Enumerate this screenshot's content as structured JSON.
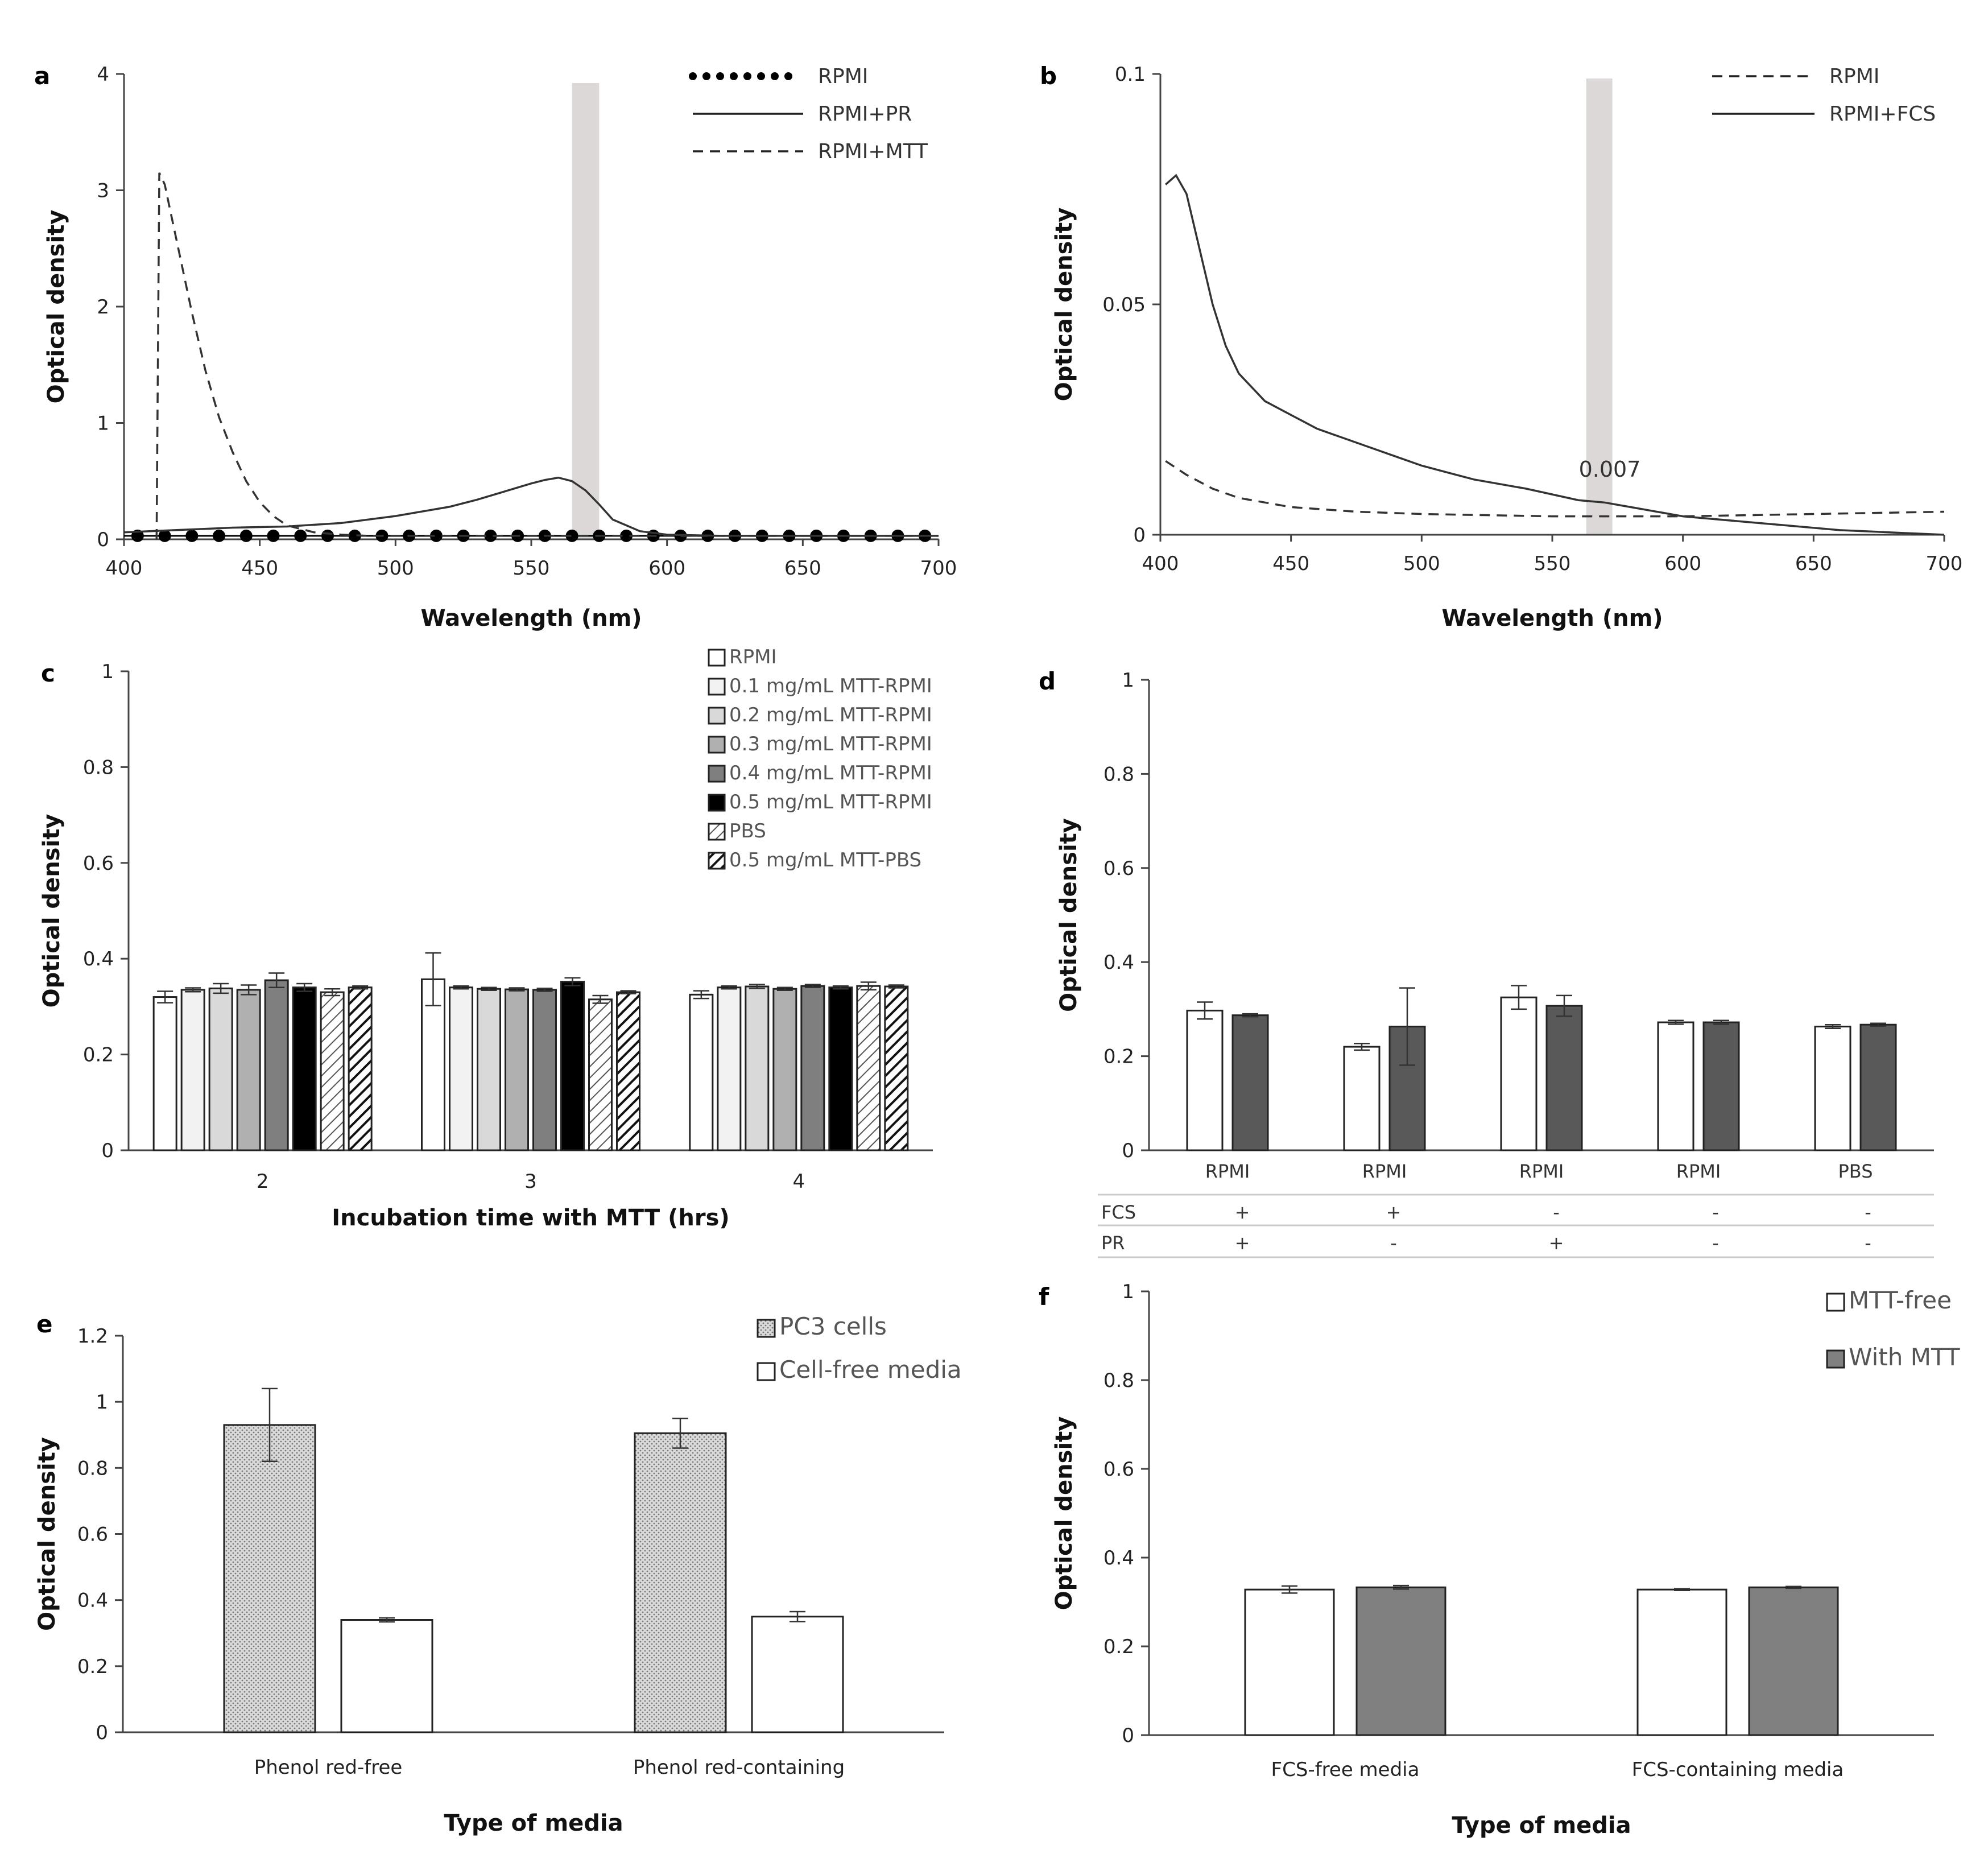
{
  "figure": {
    "panel_labels": [
      "a",
      "b",
      "c",
      "d",
      "e",
      "f"
    ],
    "table_d": {
      "row_labels": [
        "FCS",
        "PR"
      ],
      "rows": [
        [
          "+",
          "+",
          "-",
          "-",
          "-"
        ],
        [
          "+",
          "-",
          "+",
          "-",
          "-"
        ]
      ]
    }
  },
  "chart_data": [
    {
      "id": "a",
      "type": "line",
      "xlabel": "Wavelength (nm)",
      "ylabel": "Optical density",
      "xlim": [
        400,
        700
      ],
      "ylim": [
        0,
        4
      ],
      "xticks": [
        "400",
        "450",
        "500",
        "550",
        "600",
        "650",
        "700"
      ],
      "yticks": [
        "0",
        "1",
        "2",
        "3",
        "4"
      ],
      "highlight_band": [
        565,
        575
      ],
      "legend": [
        "RPMI",
        "RPMI+PR",
        "RPMI+MTT"
      ],
      "series": [
        {
          "name": "RPMI",
          "style": "dotted",
          "x": [
            400,
            410,
            420,
            430,
            440,
            450,
            460,
            470,
            480,
            490,
            500,
            510,
            520,
            530,
            540,
            550,
            560,
            570,
            580,
            590,
            600,
            610,
            620,
            630,
            640,
            650,
            660,
            670,
            680,
            690,
            700
          ],
          "y": [
            0.03,
            0.03,
            0.03,
            0.03,
            0.03,
            0.03,
            0.03,
            0.03,
            0.03,
            0.03,
            0.03,
            0.03,
            0.03,
            0.03,
            0.03,
            0.03,
            0.03,
            0.03,
            0.03,
            0.03,
            0.03,
            0.03,
            0.03,
            0.03,
            0.03,
            0.03,
            0.03,
            0.03,
            0.03,
            0.03,
            0.03
          ]
        },
        {
          "name": "RPMI+PR",
          "style": "solid",
          "x": [
            400,
            420,
            440,
            460,
            480,
            500,
            520,
            530,
            540,
            550,
            555,
            560,
            565,
            570,
            575,
            580,
            590,
            600,
            620,
            650,
            700
          ],
          "y": [
            0.06,
            0.08,
            0.1,
            0.11,
            0.14,
            0.2,
            0.28,
            0.34,
            0.41,
            0.48,
            0.51,
            0.53,
            0.5,
            0.42,
            0.3,
            0.17,
            0.07,
            0.04,
            0.03,
            0.03,
            0.03
          ]
        },
        {
          "name": "RPMI+MTT",
          "style": "dashed",
          "x": [
            412,
            413,
            415,
            420,
            425,
            430,
            435,
            440,
            445,
            450,
            455,
            460,
            470,
            480,
            490,
            500,
            550,
            600,
            700
          ],
          "y": [
            0.0,
            3.15,
            3.05,
            2.5,
            1.95,
            1.45,
            1.05,
            0.75,
            0.5,
            0.32,
            0.2,
            0.12,
            0.06,
            0.04,
            0.03,
            0.03,
            0.03,
            0.03,
            0.03
          ]
        }
      ]
    },
    {
      "id": "b",
      "type": "line",
      "xlabel": "Wavelength (nm)",
      "ylabel": "Optical density",
      "xlim": [
        400,
        700
      ],
      "ylim": [
        0,
        0.1
      ],
      "xticks": [
        "400",
        "450",
        "500",
        "550",
        "600",
        "650",
        "700"
      ],
      "yticks": [
        "0",
        "0.05",
        "0.1"
      ],
      "highlight_band": [
        563,
        573
      ],
      "annotation": "0.007",
      "legend": [
        "RPMI",
        "RPMI+FCS"
      ],
      "series": [
        {
          "name": "RPMI",
          "style": "dashed",
          "x": [
            402,
            410,
            420,
            430,
            450,
            475,
            500,
            550,
            600,
            650,
            700
          ],
          "y": [
            0.016,
            0.013,
            0.01,
            0.008,
            0.006,
            0.005,
            0.0045,
            0.004,
            0.004,
            0.0045,
            0.005
          ]
        },
        {
          "name": "RPMI+FCS",
          "style": "solid",
          "x": [
            402,
            406,
            410,
            415,
            420,
            425,
            430,
            440,
            450,
            460,
            470,
            480,
            490,
            500,
            520,
            540,
            560,
            570,
            580,
            600,
            620,
            640,
            660,
            680,
            700
          ],
          "y": [
            0.076,
            0.078,
            0.074,
            0.062,
            0.05,
            0.041,
            0.035,
            0.029,
            0.026,
            0.023,
            0.021,
            0.019,
            0.017,
            0.015,
            0.012,
            0.01,
            0.0075,
            0.007,
            0.006,
            0.004,
            0.003,
            0.002,
            0.001,
            0.0005,
            0.0
          ]
        }
      ]
    },
    {
      "id": "c",
      "type": "bar",
      "xlabel": "Incubation time with MTT (hrs)",
      "ylabel": "Optical density",
      "ylim": [
        0,
        1
      ],
      "yticks": [
        "0",
        "0.2",
        "0.4",
        "0.6",
        "0.8",
        "1"
      ],
      "categories": [
        "2",
        "3",
        "4"
      ],
      "series": [
        {
          "name": "RPMI",
          "fill": "#ffffff",
          "values": [
            0.32,
            0.357,
            0.325
          ],
          "errors": [
            0.012,
            0.055,
            0.008
          ]
        },
        {
          "name": "0.1 mg/mL MTT-RPMI",
          "fill": "#f2f2f2",
          "values": [
            0.335,
            0.34,
            0.34
          ],
          "errors": [
            0.004,
            0.003,
            0.003
          ]
        },
        {
          "name": "0.2 mg/mL MTT-RPMI",
          "fill": "#d9d9d9",
          "values": [
            0.338,
            0.337,
            0.342
          ],
          "errors": [
            0.01,
            0.003,
            0.004
          ]
        },
        {
          "name": "0.3 mg/mL MTT-RPMI",
          "fill": "#b0b0b0",
          "values": [
            0.335,
            0.336,
            0.337
          ],
          "errors": [
            0.01,
            0.003,
            0.003
          ]
        },
        {
          "name": "0.4 mg/mL MTT-RPMI",
          "fill": "#7f7f7f",
          "values": [
            0.355,
            0.335,
            0.343
          ],
          "errors": [
            0.015,
            0.003,
            0.003
          ]
        },
        {
          "name": "0.5 mg/mL MTT-RPMI",
          "fill": "#000000",
          "values": [
            0.34,
            0.352,
            0.34
          ],
          "errors": [
            0.008,
            0.008,
            0.003
          ]
        },
        {
          "name": "PBS",
          "fill": "hatch-light",
          "values": [
            0.33,
            0.315,
            0.343
          ],
          "errors": [
            0.007,
            0.008,
            0.008
          ]
        },
        {
          "name": "0.5 mg/mL MTT-PBS",
          "fill": "hatch-dark",
          "values": [
            0.34,
            0.33,
            0.342
          ],
          "errors": [
            0.003,
            0.003,
            0.003
          ]
        }
      ]
    },
    {
      "id": "d",
      "type": "bar",
      "xlabel": "",
      "ylabel": "Optical density",
      "ylim": [
        0,
        1
      ],
      "yticks": [
        "0",
        "0.2",
        "0.4",
        "0.6",
        "0.8",
        "1"
      ],
      "categories": [
        "RPMI",
        "RPMI",
        "RPMI",
        "RPMI",
        "PBS"
      ],
      "series": [
        {
          "name": "MTT-free",
          "fill": "#ffffff",
          "values": [
            0.297,
            0.22,
            0.325,
            0.272,
            0.263
          ],
          "errors": [
            0.018,
            0.007,
            0.025,
            0.004,
            0.004
          ]
        },
        {
          "name": "With MTT",
          "fill": "#595959",
          "values": [
            0.287,
            0.263,
            0.307,
            0.272,
            0.267
          ],
          "errors": [
            0.003,
            0.082,
            0.022,
            0.004,
            0.003
          ]
        }
      ]
    },
    {
      "id": "e",
      "type": "bar",
      "xlabel": "Type of media",
      "ylabel": "Optical density",
      "ylim": [
        0,
        1.2
      ],
      "yticks": [
        "0",
        "0.2",
        "0.4",
        "0.6",
        "0.8",
        "1",
        "1.2"
      ],
      "categories": [
        "Phenol red-free",
        "Phenol red-containing"
      ],
      "series": [
        {
          "name": "PC3 cells",
          "fill": "dots",
          "values": [
            0.93,
            0.905
          ],
          "errors": [
            0.11,
            0.045
          ]
        },
        {
          "name": "Cell-free media",
          "fill": "#ffffff",
          "values": [
            0.34,
            0.35
          ],
          "errors": [
            0.006,
            0.015
          ]
        }
      ]
    },
    {
      "id": "f",
      "type": "bar",
      "xlabel": "Type of media",
      "ylabel": "Optical density",
      "ylim": [
        0,
        1
      ],
      "yticks": [
        "0",
        "0.2",
        "0.4",
        "0.6",
        "0.8",
        "1"
      ],
      "categories": [
        "FCS-free media",
        "FCS-containing media"
      ],
      "series": [
        {
          "name": "MTT-free",
          "fill": "#ffffff",
          "values": [
            0.328,
            0.328
          ],
          "errors": [
            0.008,
            0.002
          ]
        },
        {
          "name": "With MTT",
          "fill": "#808080",
          "values": [
            0.333,
            0.333
          ],
          "errors": [
            0.004,
            0.002
          ]
        }
      ]
    }
  ]
}
